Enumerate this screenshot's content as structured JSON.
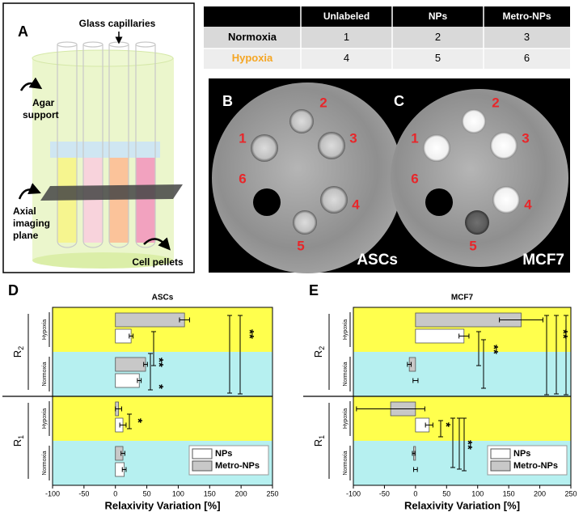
{
  "panel_a": {
    "label": "A",
    "capillaries": "Glass capillaries",
    "agar": [
      "Agar",
      "support"
    ],
    "plane": [
      "Axial",
      "imaging",
      "plane"
    ],
    "pellets": "Cell pellets"
  },
  "table": {
    "header": [
      "Unlabeled",
      "NPs",
      "Metro-NPs"
    ],
    "rows": [
      {
        "label": "Normoxia",
        "color": "#000000",
        "cells": [
          1,
          2,
          3
        ]
      },
      {
        "label": "Hypoxia",
        "color": "#f5a623",
        "cells": [
          4,
          5,
          6
        ]
      }
    ]
  },
  "images": [
    {
      "label": "B",
      "caption": "ASCs",
      "wells": [
        "1",
        "2",
        "3",
        "4",
        "5",
        "6"
      ]
    },
    {
      "label": "C",
      "caption": "MCF7",
      "wells": [
        "1",
        "2",
        "3",
        "4",
        "5",
        "6"
      ]
    }
  ],
  "chart_data": [
    {
      "type": "hbar",
      "panel_label": "D",
      "title": "ASCs",
      "x_label": "Relaxivity Variation [%]",
      "categories": [
        "Hypoxia",
        "Normoxia",
        "Hypoxia",
        "Normoxia"
      ],
      "band_colors": [
        "#ffff4d",
        "#b6f0f0",
        "#ffff4d",
        "#b6f0f0"
      ],
      "groups": [
        {
          "symbol": "R",
          "subscript": "2"
        },
        {
          "symbol": "R",
          "subscript": "1"
        }
      ],
      "series": [
        {
          "name": "NPs",
          "color": "#ffffff",
          "values": [
            25,
            38,
            12,
            14
          ],
          "errors": [
            3,
            3,
            5,
            3
          ]
        },
        {
          "name": "Metro-NPs",
          "color": "#c8c8c8",
          "values": [
            110,
            48,
            5,
            12
          ],
          "errors": [
            8,
            3,
            5,
            3
          ]
        }
      ],
      "xlim": [
        -100,
        250
      ],
      "xticks": [
        -100,
        -50,
        0,
        50,
        100,
        150,
        200,
        250
      ],
      "annotations": [
        "**",
        "**",
        "*",
        "*"
      ]
    },
    {
      "type": "hbar",
      "panel_label": "E",
      "title": "MCF7",
      "x_label": "Relaxivity Variation [%]",
      "categories": [
        "Hypoxia",
        "Normoxia",
        "Hypoxia",
        "Normoxia"
      ],
      "band_colors": [
        "#ffff4d",
        "#b6f0f0",
        "#ffff4d",
        "#b6f0f0"
      ],
      "groups": [
        {
          "symbol": "R",
          "subscript": "2"
        },
        {
          "symbol": "R",
          "subscript": "1"
        }
      ],
      "series": [
        {
          "name": "NPs",
          "color": "#ffffff",
          "values": [
            78,
            0,
            22,
            0
          ],
          "errors": [
            8,
            4,
            6,
            3
          ]
        },
        {
          "name": "Metro-NPs",
          "color": "#c8c8c8",
          "values": [
            170,
            -10,
            -40,
            -3
          ],
          "errors": [
            35,
            3,
            55,
            2
          ]
        }
      ],
      "xlim": [
        -100,
        250
      ],
      "xticks": [
        -100,
        -50,
        0,
        50,
        100,
        150,
        200,
        250
      ],
      "annotations": [
        "**",
        "**",
        "*",
        "**"
      ]
    }
  ]
}
